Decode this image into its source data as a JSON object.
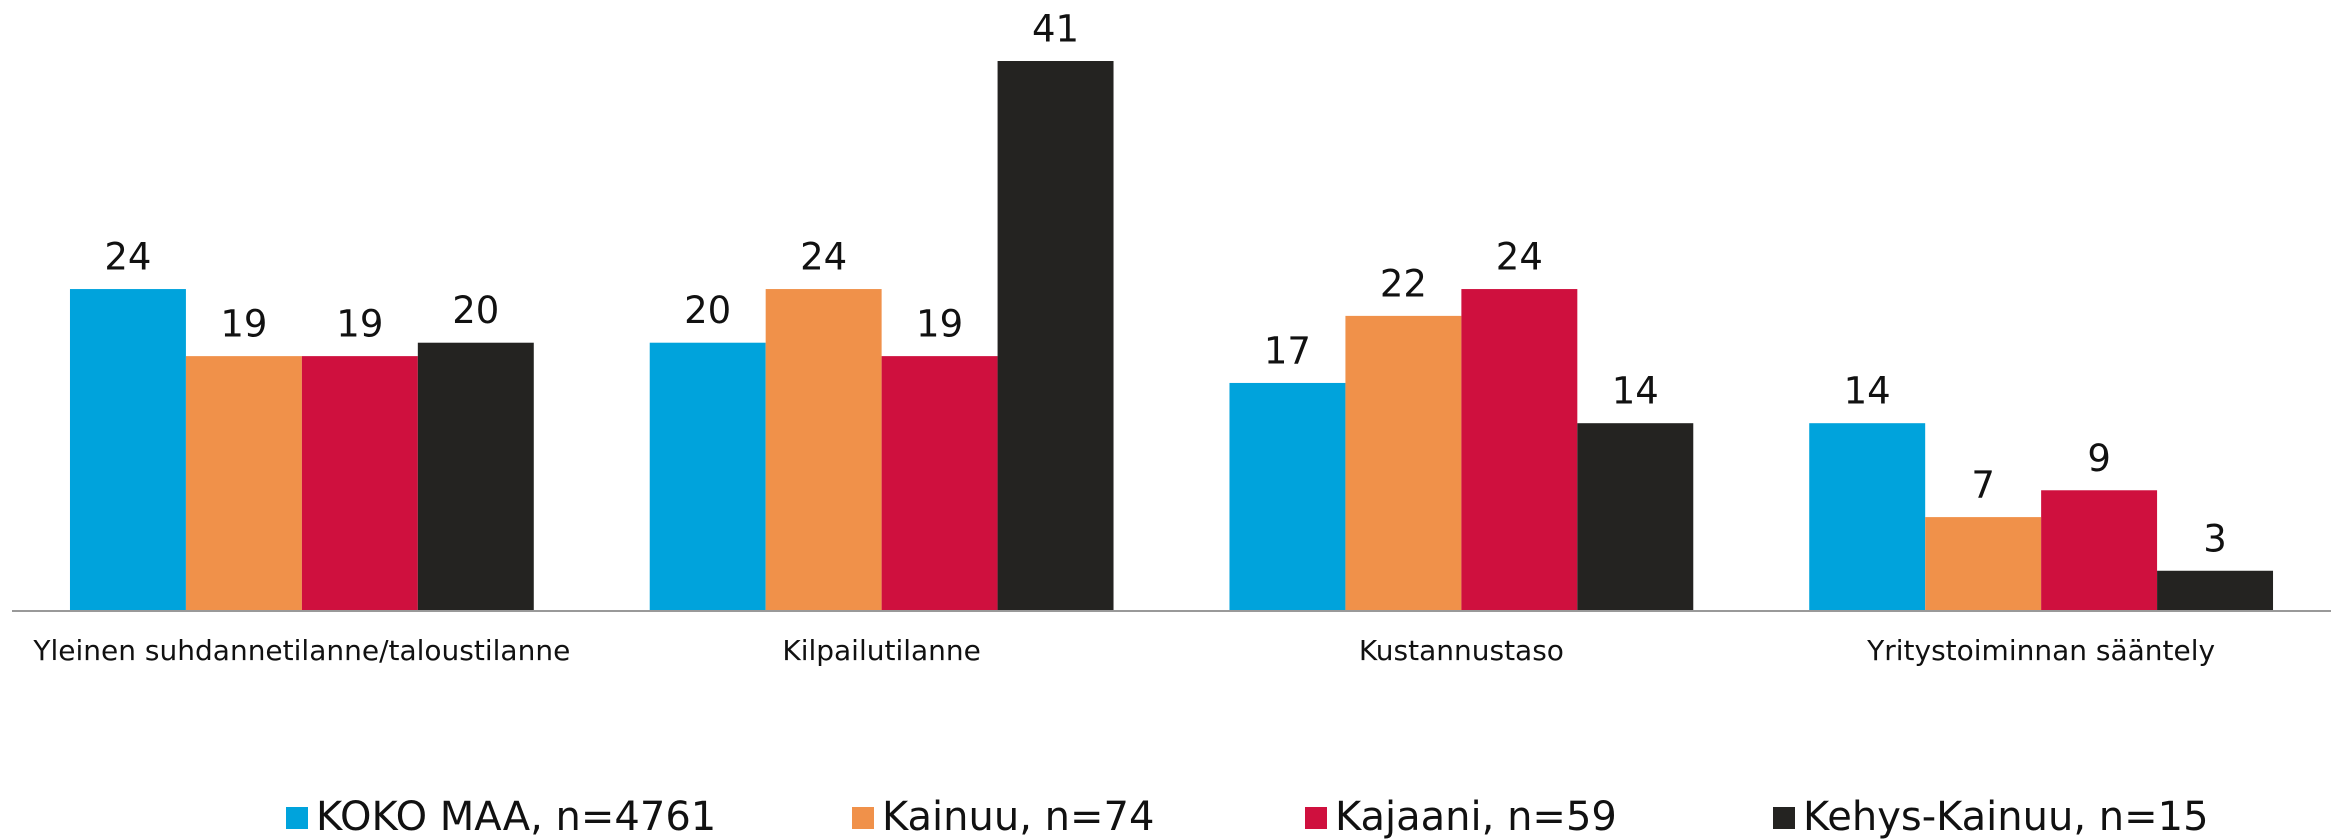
{
  "chart_data": {
    "type": "bar",
    "categories": [
      "Yleinen suhdannetilanne/taloustilanne",
      "Kilpailutilanne",
      "Kustannustaso",
      "Yritystoiminnan sääntely"
    ],
    "series": [
      {
        "name": "KOKO MAA, n=4761",
        "color": "#00a3dc",
        "values": [
          24,
          20,
          17,
          14
        ]
      },
      {
        "name": "Kainuu, n=74",
        "color": "#f0914a",
        "values": [
          19,
          24,
          22,
          7
        ]
      },
      {
        "name": "Kajaani, n=59",
        "color": "#cf103e",
        "values": [
          19,
          19,
          24,
          9
        ]
      },
      {
        "name": "Kehys-Kainuu, n=15",
        "color": "#242321",
        "values": [
          20,
          41,
          14,
          3
        ]
      }
    ],
    "legend": "bottom"
  }
}
